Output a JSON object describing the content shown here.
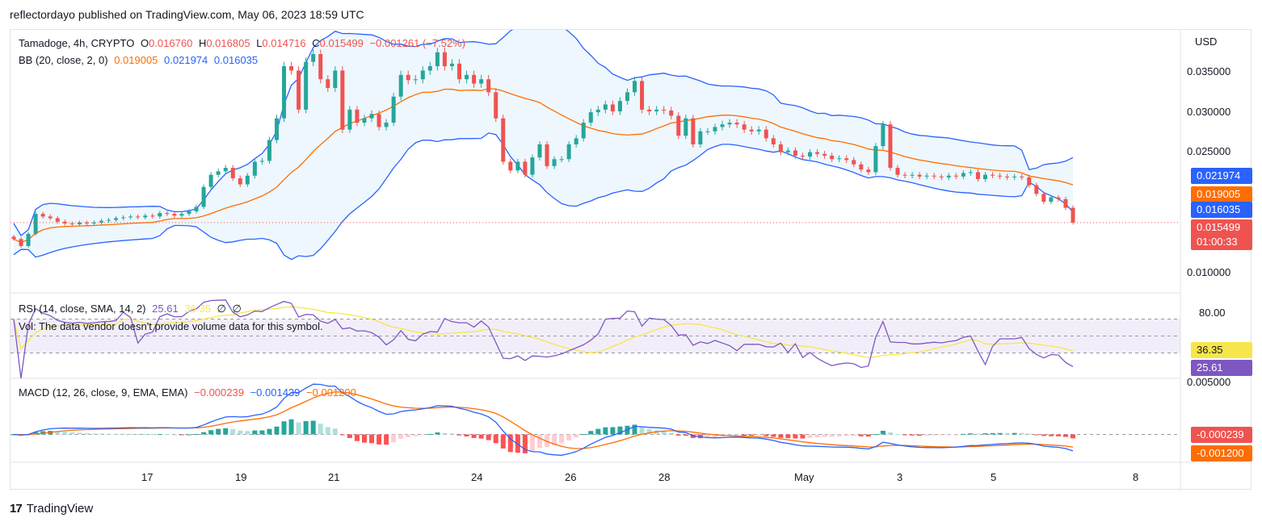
{
  "header": {
    "text": "reflectordayo published on TradingView.com, May 06, 2023 18:59 UTC"
  },
  "colors": {
    "up": "#26a69a",
    "down": "#ef5350",
    "bb_upper": "#2962ff",
    "bb_basis": "#ff6d00",
    "bb_fill": "#e3f2fd",
    "rsi": "#7e57c2",
    "rsi_sma": "#f7e64b",
    "macd": "#2962ff",
    "signal": "#ff6d00"
  },
  "main_legend": {
    "line1": {
      "symbol": "Tamadoge, 4h, CRYPTO",
      "o_label": "O",
      "o": "0.016760",
      "h_label": "H",
      "h": "0.016805",
      "l_label": "L",
      "l": "0.014716",
      "c_label": "C",
      "c": "0.015499",
      "change": "−0.001261 (−7.52%)"
    },
    "line2": {
      "name": "BB (20, close, 2, 0)",
      "basis": "0.019005",
      "upper": "0.021974",
      "lower": "0.016035"
    }
  },
  "rsi_legend": {
    "name": "RSI (14, close, SMA, 14, 2)",
    "rsi": "25.61",
    "sma": "36.35",
    "extra1": "∅",
    "extra2": "∅",
    "vol_note": "Vol: The data vendor doesn't provide volume data for this symbol."
  },
  "macd_legend": {
    "name": "MACD (12, 26, close, 9, EMA, EMA)",
    "hist": "−0.000239",
    "macd": "−0.001439",
    "signal": "−0.001200"
  },
  "price_axis": {
    "currency": "USD",
    "ticks": [
      "0.035000",
      "0.030000",
      "0.025000",
      "0.010000"
    ]
  },
  "rsi_axis": {
    "ticks": [
      "80.00"
    ]
  },
  "macd_axis": {
    "ticks": [
      "0.005000"
    ]
  },
  "price_boxes": {
    "bb_upper": "0.021974",
    "bb_basis": "0.019005",
    "bb_lower": "0.016035",
    "last": "0.015499",
    "countdown": "01:00:33",
    "rsi_sma": "36.35",
    "rsi": "25.61",
    "macd_hist": "-0.000239",
    "macd_signal": "-0.001200"
  },
  "time_axis": {
    "labels": [
      "17",
      "19",
      "21",
      "24",
      "26",
      "28",
      "May",
      "3",
      "5",
      "8"
    ]
  },
  "footer": {
    "brand": "TradingView"
  },
  "chart_data": [
    {
      "type": "candlestick",
      "title": "Tamadoge, 4h, CRYPTO",
      "ylabel": "USD",
      "ylim": [
        0.0075,
        0.0375
      ],
      "x_labels": [
        "17",
        "19",
        "21",
        "24",
        "26",
        "28",
        "May",
        "3",
        "5",
        "8"
      ],
      "close": [
        0.0136,
        0.0128,
        0.0142,
        0.0165,
        0.0162,
        0.016,
        0.0156,
        0.0154,
        0.0153,
        0.0155,
        0.0154,
        0.0155,
        0.0157,
        0.0158,
        0.016,
        0.0161,
        0.0162,
        0.0161,
        0.0163,
        0.0162,
        0.0166,
        0.0165,
        0.0163,
        0.0165,
        0.0168,
        0.0173,
        0.0196,
        0.021,
        0.0214,
        0.0218,
        0.0206,
        0.0199,
        0.0209,
        0.0225,
        0.0226,
        0.025,
        0.0275,
        0.0335,
        0.033,
        0.0285,
        0.034,
        0.0349,
        0.032,
        0.031,
        0.033,
        0.0262,
        0.0285,
        0.027,
        0.0275,
        0.028,
        0.0265,
        0.027,
        0.03,
        0.0325,
        0.0319,
        0.032,
        0.033,
        0.0335,
        0.0351,
        0.0335,
        0.0338,
        0.032,
        0.0325,
        0.0315,
        0.032,
        0.0305,
        0.0275,
        0.0225,
        0.0215,
        0.0225,
        0.021,
        0.023,
        0.0245,
        0.022,
        0.0228,
        0.0228,
        0.0245,
        0.0252,
        0.027,
        0.0282,
        0.0285,
        0.0291,
        0.0283,
        0.0295,
        0.0305,
        0.0318,
        0.0285,
        0.0283,
        0.0285,
        0.0284,
        0.0278,
        0.0255,
        0.0275,
        0.0245,
        0.026,
        0.026,
        0.0265,
        0.0268,
        0.027,
        0.0268,
        0.0262,
        0.026,
        0.0262,
        0.0252,
        0.0245,
        0.0236,
        0.0238,
        0.0232,
        0.0231,
        0.0236,
        0.0234,
        0.0232,
        0.0228,
        0.0229,
        0.0227,
        0.0222,
        0.0216,
        0.0213,
        0.0243,
        0.0268,
        0.0218,
        0.021,
        0.0209,
        0.021,
        0.0208,
        0.0209,
        0.0208,
        0.0207,
        0.0209,
        0.0208,
        0.0212,
        0.0213,
        0.0205,
        0.021,
        0.0209,
        0.0208,
        0.0207,
        0.0208,
        0.0207,
        0.0198,
        0.0188,
        0.0179,
        0.0184,
        0.0182,
        0.0172,
        0.0155
      ]
    },
    {
      "type": "line",
      "title": "RSI (14, close, SMA, 14, 2)",
      "ylim": [
        0,
        100
      ],
      "series": [
        {
          "name": "RSI",
          "value": 25.61
        },
        {
          "name": "SMA",
          "value": 36.35
        }
      ],
      "bands": [
        70,
        50,
        30
      ]
    },
    {
      "type": "line",
      "title": "MACD (12, 26, close, 9, EMA, EMA)",
      "series": [
        {
          "name": "Histogram",
          "value": -0.000239
        },
        {
          "name": "MACD",
          "value": -0.001439
        },
        {
          "name": "Signal",
          "value": -0.0012
        }
      ]
    }
  ]
}
